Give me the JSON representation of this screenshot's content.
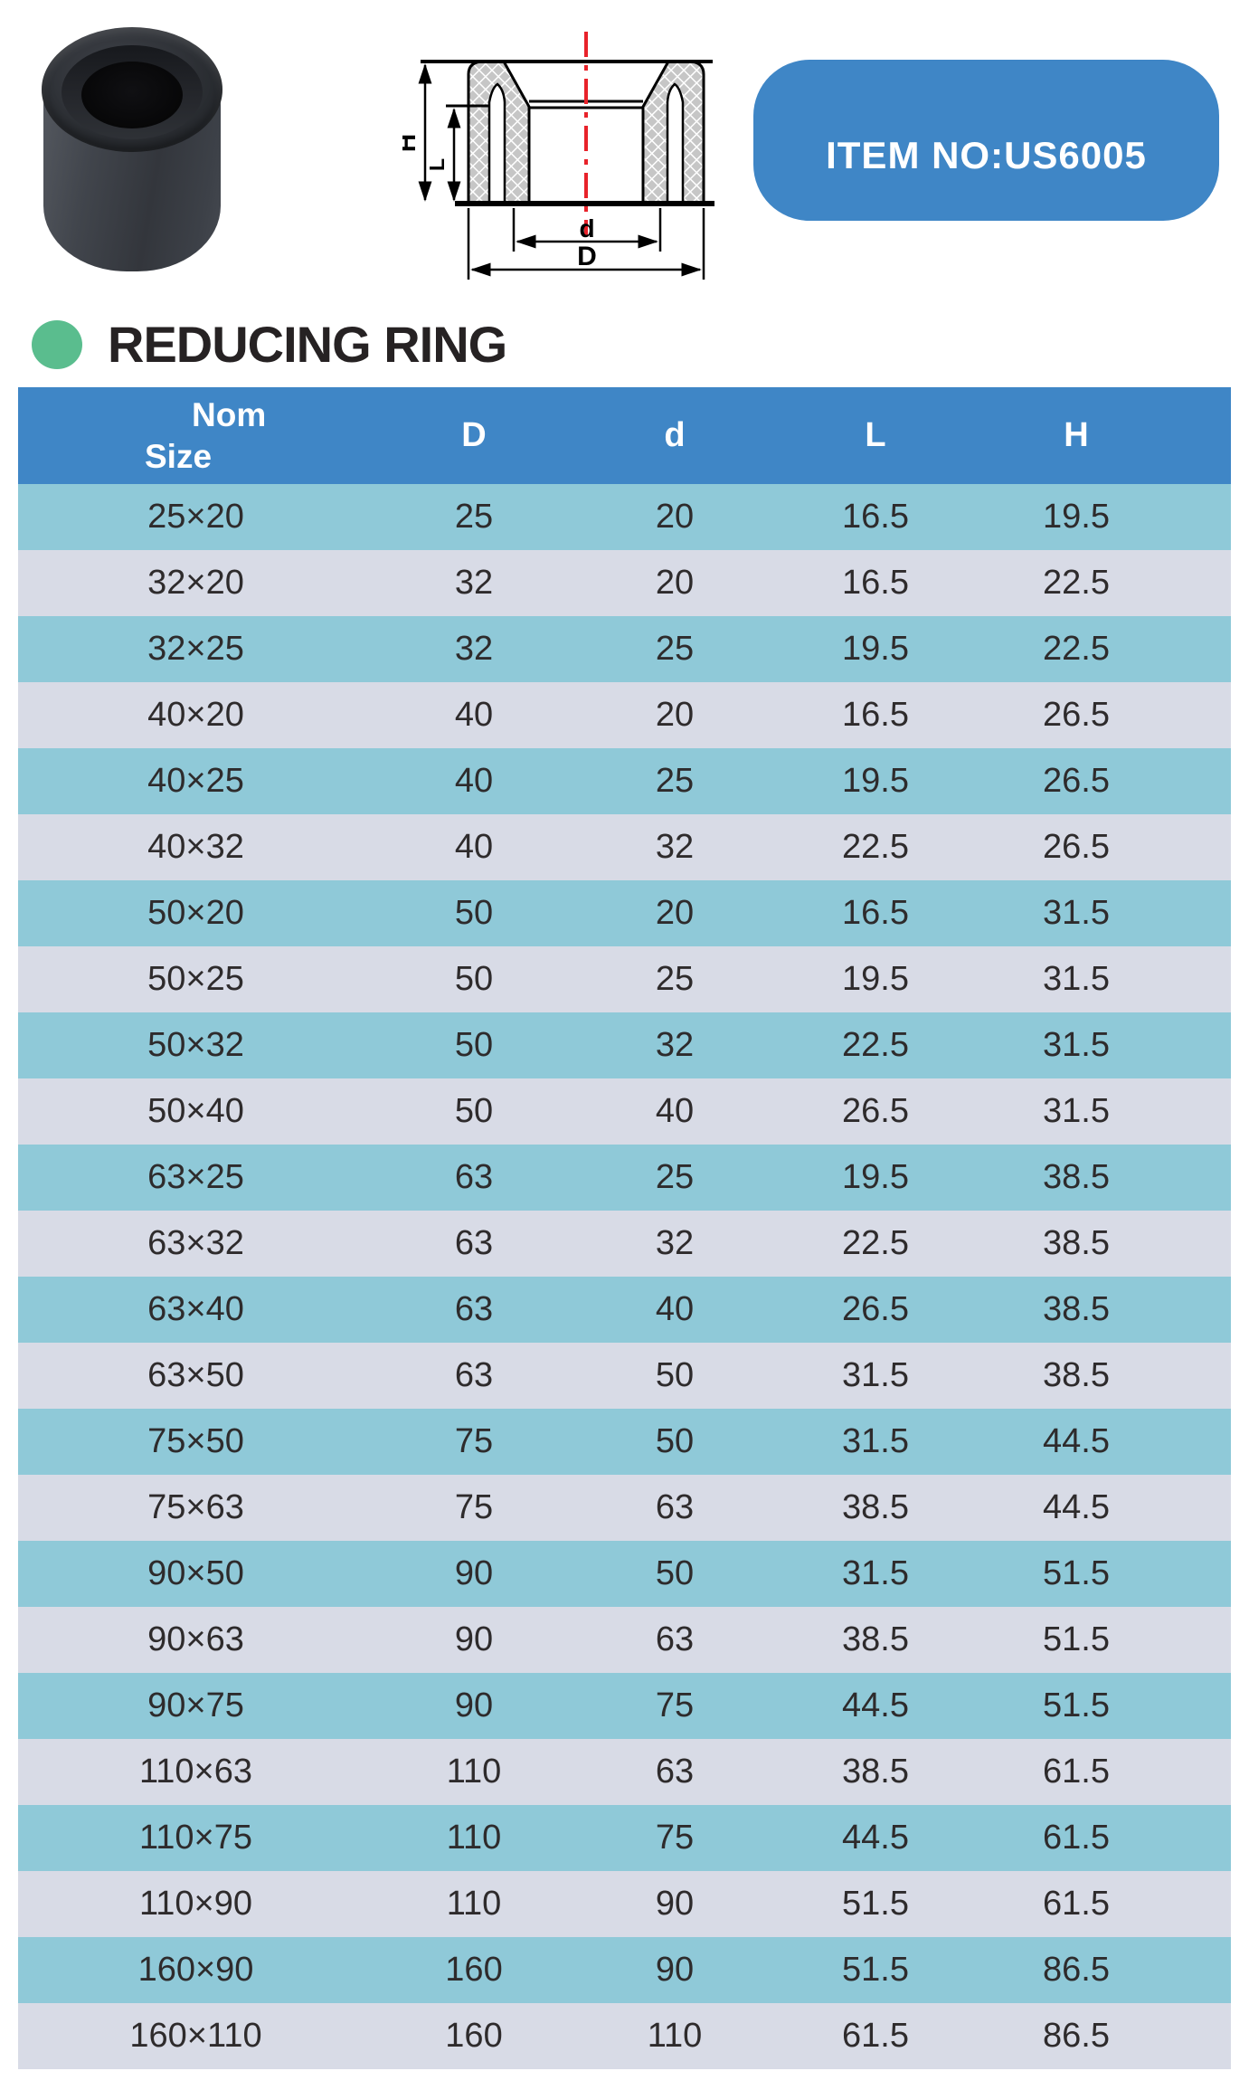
{
  "badge": {
    "label": "ITEM NO:US6005"
  },
  "heading": {
    "title": "REDUCING RING"
  },
  "drawing": {
    "description": "cross-section of reducing ring",
    "labels": {
      "H": "H",
      "L": "L",
      "d": "d",
      "D": "D"
    }
  },
  "table": {
    "header": {
      "col1_line1": "Nom",
      "col1_line2": "Size",
      "col2": "D",
      "col3": "d",
      "col4": "L",
      "col5": "H"
    },
    "rows": [
      [
        "25×20",
        "25",
        "20",
        "16.5",
        "19.5"
      ],
      [
        "32×20",
        "32",
        "20",
        "16.5",
        "22.5"
      ],
      [
        "32×25",
        "32",
        "25",
        "19.5",
        "22.5"
      ],
      [
        "40×20",
        "40",
        "20",
        "16.5",
        "26.5"
      ],
      [
        "40×25",
        "40",
        "25",
        "19.5",
        "26.5"
      ],
      [
        "40×32",
        "40",
        "32",
        "22.5",
        "26.5"
      ],
      [
        "50×20",
        "50",
        "20",
        "16.5",
        "31.5"
      ],
      [
        "50×25",
        "50",
        "25",
        "19.5",
        "31.5"
      ],
      [
        "50×32",
        "50",
        "32",
        "22.5",
        "31.5"
      ],
      [
        "50×40",
        "50",
        "40",
        "26.5",
        "31.5"
      ],
      [
        "63×25",
        "63",
        "25",
        "19.5",
        "38.5"
      ],
      [
        "63×32",
        "63",
        "32",
        "22.5",
        "38.5"
      ],
      [
        "63×40",
        "63",
        "40",
        "26.5",
        "38.5"
      ],
      [
        "63×50",
        "63",
        "50",
        "31.5",
        "38.5"
      ],
      [
        "75×50",
        "75",
        "50",
        "31.5",
        "44.5"
      ],
      [
        "75×63",
        "75",
        "63",
        "38.5",
        "44.5"
      ],
      [
        "90×50",
        "90",
        "50",
        "31.5",
        "51.5"
      ],
      [
        "90×63",
        "90",
        "63",
        "38.5",
        "51.5"
      ],
      [
        "90×75",
        "90",
        "75",
        "44.5",
        "51.5"
      ],
      [
        "110×63",
        "110",
        "63",
        "38.5",
        "61.5"
      ],
      [
        "110×75",
        "110",
        "75",
        "44.5",
        "61.5"
      ],
      [
        "110×90",
        "110",
        "90",
        "51.5",
        "61.5"
      ],
      [
        "160×90",
        "160",
        "90",
        "51.5",
        "86.5"
      ],
      [
        "160×110",
        "160",
        "110",
        "61.5",
        "86.5"
      ]
    ]
  },
  "colors": {
    "header_blue": "#3f86c6",
    "badge_blue": "#3f86c6",
    "row_teal": "#8fc9d8",
    "row_gray": "#d8dbe6",
    "accent_green": "#5abd8e",
    "centerline_red": "#e8222a",
    "text_dark": "#2e2b2c"
  }
}
